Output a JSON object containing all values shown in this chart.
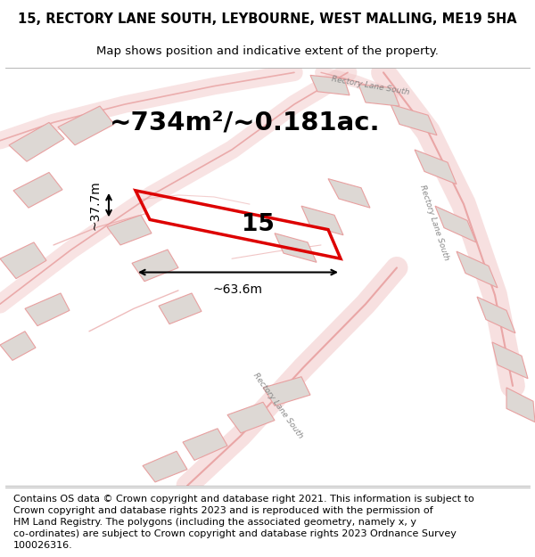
{
  "title_line1": "15, RECTORY LANE SOUTH, LEYBOURNE, WEST MALLING, ME19 5HA",
  "title_line2": "Map shows position and indicative extent of the property.",
  "area_label": "~734m²/~0.181ac.",
  "property_number": "15",
  "width_label": "~63.6m",
  "height_label": "~37.7m",
  "footer_text": "Contains OS data © Crown copyright and database right 2021. This information is subject to\nCrown copyright and database rights 2023 and is reproduced with the permission of\nHM Land Registry. The polygons (including the associated geometry, namely x, y\nco-ordinates) are subject to Crown copyright and database rights 2023 Ordnance Survey\n100026316.",
  "map_bg": "#f7f2ef",
  "road_fill": "#f2c8c8",
  "road_edge": "#e8a0a0",
  "building_fill": "#ddd8d4",
  "building_edge": "#c8b8b0",
  "polygon_color": "#dd0000",
  "text_color": "#111111",
  "label_color": "#888888",
  "title_fontsize": 10.5,
  "subtitle_fontsize": 9.5,
  "area_fontsize": 21,
  "number_fontsize": 19,
  "dim_fontsize": 10,
  "footer_fontsize": 8.0
}
